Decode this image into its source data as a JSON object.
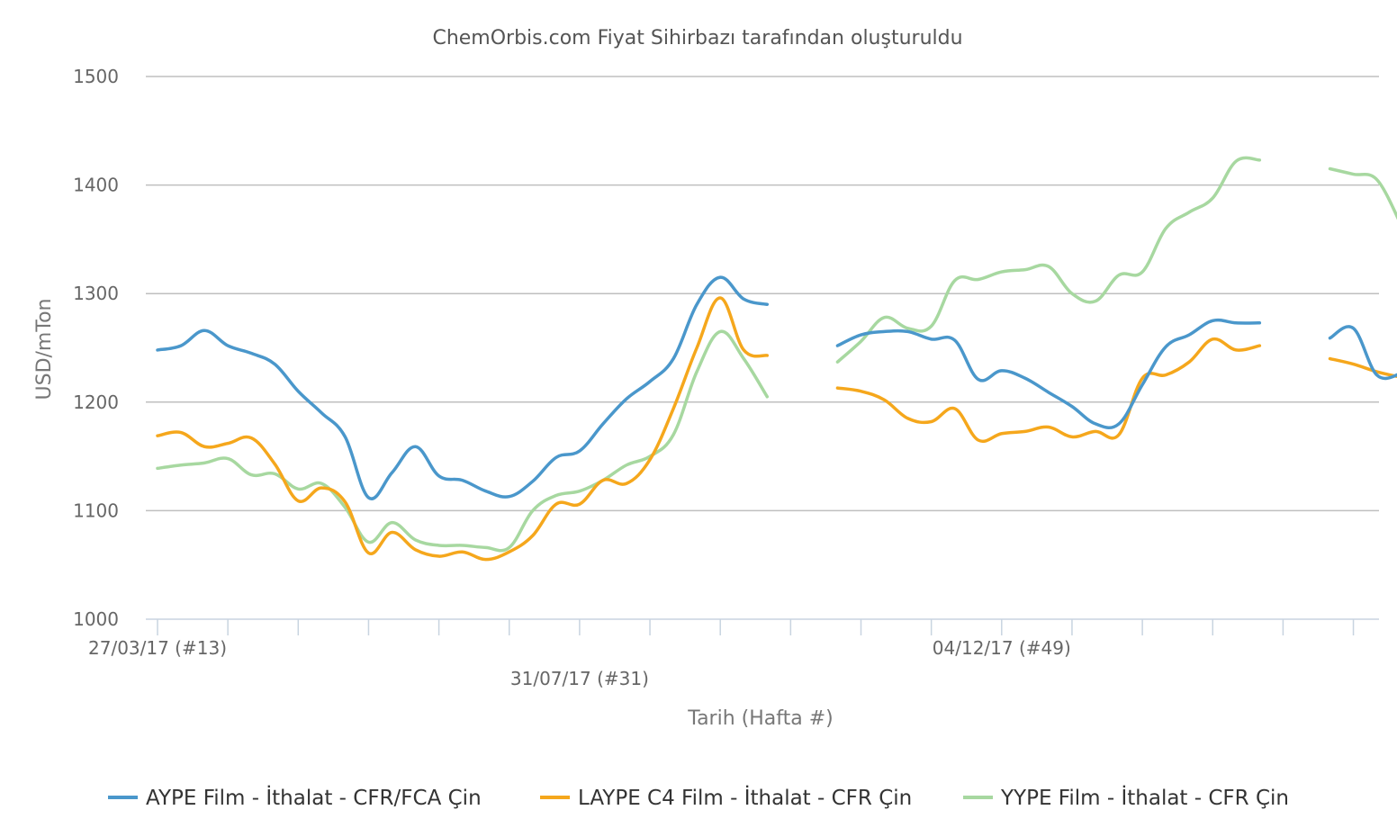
{
  "chart_data": {
    "type": "line",
    "title": "ChemOrbis.com Fiyat Sihirbazı tarafından oluşturuldu",
    "xlabel": "Tarih (Hafta #)",
    "ylabel": "USD/mTon",
    "ylim": [
      1000,
      1500
    ],
    "yticks": [
      1000,
      1100,
      1200,
      1300,
      1400,
      1500
    ],
    "grid": true,
    "legend_position": "bottom",
    "x_labels": [
      {
        "week_index": 0,
        "label": "27/03/17 (#13)"
      },
      {
        "week_index": 18,
        "label": "31/07/17 (#31)"
      },
      {
        "week_index": 36,
        "label": "04/12/17 (#49)"
      }
    ],
    "series": [
      {
        "name": "AYPE Film - İthalat - CFR/FCA Çin",
        "color": "#4a97cb",
        "values": [
          1248,
          1252,
          1266,
          1252,
          1245,
          1235,
          1210,
          1190,
          1168,
          1112,
          1135,
          1159,
          1132,
          1128,
          1118,
          1113,
          1127,
          1149,
          1155,
          1180,
          1203,
          1219,
          1240,
          1290,
          1315,
          1295,
          1290,
          null,
          null,
          1252,
          1262,
          1265,
          1265,
          1258,
          1257,
          1221,
          1229,
          1222,
          1209,
          1196,
          1180,
          1180,
          1216,
          1251,
          1262,
          1275,
          1273,
          1273,
          null,
          null,
          1259,
          1268,
          1225,
          1226
        ]
      },
      {
        "name": "LAYPE C4 Film - İthalat - CFR Çin",
        "color": "#f5a71c",
        "values": [
          1169,
          1172,
          1159,
          1162,
          1167,
          1143,
          1109,
          1121,
          1108,
          1061,
          1080,
          1064,
          1058,
          1062,
          1055,
          1062,
          1077,
          1106,
          1106,
          1128,
          1125,
          1147,
          1194,
          1250,
          1296,
          1248,
          1243,
          null,
          null,
          1213,
          1210,
          1202,
          1185,
          1182,
          1194,
          1165,
          1171,
          1173,
          1177,
          1168,
          1173,
          1170,
          1222,
          1225,
          1237,
          1258,
          1248,
          1252,
          null,
          null,
          1240,
          1235,
          1228,
          1223
        ]
      },
      {
        "name": "YYPE Film - İthalat - CFR Çin",
        "color": "#a7d8a0",
        "values": [
          1139,
          1142,
          1144,
          1148,
          1133,
          1134,
          1120,
          1125,
          1103,
          1071,
          1089,
          1073,
          1068,
          1068,
          1066,
          1066,
          1100,
          1114,
          1118,
          1128,
          1142,
          1150,
          1170,
          1228,
          1265,
          1240,
          1205,
          null,
          null,
          1237,
          1256,
          1278,
          1268,
          1270,
          1312,
          1313,
          1320,
          1322,
          1325,
          1300,
          1293,
          1317,
          1320,
          1360,
          1375,
          1388,
          1422,
          1423,
          null,
          null,
          1415,
          1410,
          1405,
          1365
        ]
      }
    ]
  }
}
